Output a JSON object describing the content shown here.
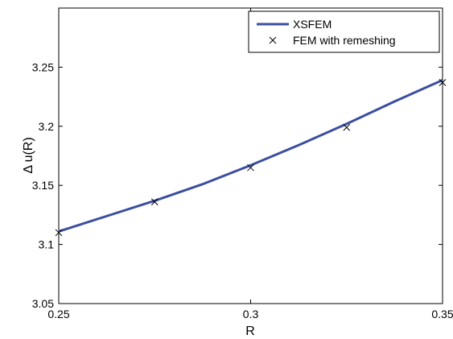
{
  "chart_data": {
    "type": "line",
    "xlabel": "R",
    "ylabel": "Δ u(R)",
    "xlim": [
      0.25,
      0.35
    ],
    "ylim": [
      3.05,
      3.3
    ],
    "x_ticks": [
      "0.25",
      "0.3",
      "0.35"
    ],
    "x_tick_values": [
      0.25,
      0.3,
      0.35
    ],
    "y_ticks": [
      "3.05",
      "3.1",
      "3.15",
      "3.2",
      "3.25"
    ],
    "y_tick_values": [
      3.05,
      3.1,
      3.15,
      3.2,
      3.25
    ],
    "legend_position": "top-right",
    "grid": false,
    "series": [
      {
        "name": "XSFEM",
        "style": "line",
        "color": "#3b4ea0",
        "x": [
          0.25,
          0.2625,
          0.275,
          0.2875,
          0.3,
          0.3125,
          0.325,
          0.3375,
          0.35
        ],
        "y": [
          3.111,
          3.124,
          3.137,
          3.151,
          3.167,
          3.184,
          3.202,
          3.221,
          3.239
        ]
      },
      {
        "name": "FEM with remeshing",
        "style": "markers",
        "marker": "x",
        "color": "#000000",
        "x": [
          0.25,
          0.275,
          0.3,
          0.325,
          0.35
        ],
        "y": [
          3.11,
          3.136,
          3.165,
          3.199,
          3.237
        ]
      }
    ]
  }
}
